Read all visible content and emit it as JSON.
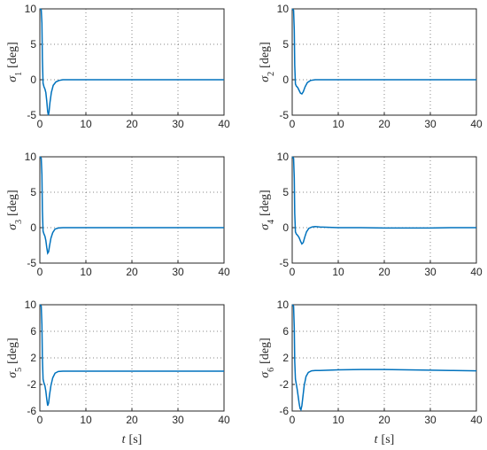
{
  "colors": {
    "line": "#0072BD",
    "axis": "#262626"
  },
  "x_axis_label": {
    "var": "t",
    "unit": "[s]"
  },
  "chart_data": [
    {
      "type": "line",
      "symbol": "σ",
      "subscript": "1",
      "unit": "[deg]",
      "xlim": [
        0,
        40
      ],
      "ylim": [
        -5,
        10
      ],
      "xticks": [
        "0",
        "10",
        "20",
        "30",
        "40"
      ],
      "yticks": [
        "-5",
        "0",
        "5",
        "10"
      ],
      "ytick_values": [
        -5,
        0,
        5,
        10
      ],
      "grid": true,
      "x": [
        0,
        0.3,
        0.45,
        0.55,
        0.7,
        0.9,
        1.1,
        1.3,
        1.5,
        1.7,
        1.85,
        2.0,
        2.2,
        2.5,
        2.9,
        3.5,
        4.2,
        5,
        6,
        8,
        10,
        15,
        20,
        25,
        30,
        35,
        40
      ],
      "y": [
        10,
        9.9,
        8.0,
        3.0,
        -0.5,
        -1.0,
        -1.3,
        -1.8,
        -3.0,
        -4.5,
        -5.0,
        -4.5,
        -3.2,
        -1.8,
        -0.8,
        -0.3,
        -0.1,
        0,
        0,
        0,
        0,
        0,
        0,
        0,
        0,
        0,
        0
      ]
    },
    {
      "type": "line",
      "symbol": "σ",
      "subscript": "2",
      "unit": "[deg]",
      "xlim": [
        0,
        40
      ],
      "ylim": [
        -5,
        10
      ],
      "xticks": [
        "0",
        "10",
        "20",
        "30",
        "40"
      ],
      "yticks": [
        "-5",
        "0",
        "5",
        "10"
      ],
      "ytick_values": [
        -5,
        0,
        5,
        10
      ],
      "grid": true,
      "x": [
        0,
        0.3,
        0.45,
        0.55,
        0.7,
        0.9,
        1.2,
        1.5,
        1.8,
        2.1,
        2.4,
        2.8,
        3.3,
        4,
        5,
        6,
        8,
        10,
        15,
        20,
        25,
        30,
        35,
        40
      ],
      "y": [
        10,
        9.8,
        7.0,
        2.0,
        -0.6,
        -0.9,
        -1.1,
        -1.5,
        -1.9,
        -2.0,
        -1.7,
        -1.0,
        -0.4,
        -0.1,
        0,
        0,
        0,
        0,
        0,
        0,
        0,
        0,
        0,
        0
      ]
    },
    {
      "type": "line",
      "symbol": "σ",
      "subscript": "3",
      "unit": "[deg]",
      "xlim": [
        0,
        40
      ],
      "ylim": [
        -5,
        10
      ],
      "xticks": [
        "0",
        "10",
        "20",
        "30",
        "40"
      ],
      "yticks": [
        "-5",
        "0",
        "5",
        "10"
      ],
      "ytick_values": [
        -5,
        0,
        5,
        10
      ],
      "grid": true,
      "x": [
        0,
        0.3,
        0.45,
        0.55,
        0.7,
        0.9,
        1.1,
        1.3,
        1.5,
        1.7,
        1.9,
        2.1,
        2.4,
        2.8,
        3.3,
        4,
        5,
        6,
        8,
        10,
        15,
        20,
        25,
        30,
        35,
        40
      ],
      "y": [
        10,
        9.8,
        7.5,
        2.5,
        -0.5,
        -0.9,
        -1.2,
        -1.8,
        -2.8,
        -3.6,
        -3.4,
        -2.6,
        -1.5,
        -0.7,
        -0.2,
        -0.05,
        0,
        0,
        0,
        0,
        0,
        0,
        0,
        0,
        0,
        0
      ]
    },
    {
      "type": "line",
      "symbol": "σ",
      "subscript": "4",
      "unit": "[deg]",
      "xlim": [
        0,
        40
      ],
      "ylim": [
        -5,
        10
      ],
      "xticks": [
        "0",
        "10",
        "20",
        "30",
        "40"
      ],
      "yticks": [
        "-5",
        "0",
        "5",
        "10"
      ],
      "ytick_values": [
        -5,
        0,
        5,
        10
      ],
      "grid": true,
      "x": [
        0,
        0.3,
        0.45,
        0.55,
        0.7,
        0.9,
        1.2,
        1.5,
        1.8,
        2.1,
        2.4,
        2.7,
        3.1,
        3.6,
        4.3,
        5,
        6,
        8,
        10,
        15,
        20,
        25,
        30,
        35,
        40
      ],
      "y": [
        10,
        9.8,
        7.0,
        2.0,
        -0.6,
        -0.9,
        -1.1,
        -1.4,
        -1.9,
        -2.3,
        -2.1,
        -1.4,
        -0.6,
        -0.1,
        0.1,
        0.15,
        0.1,
        0.05,
        0,
        0,
        -0.05,
        -0.05,
        -0.05,
        0,
        0
      ]
    },
    {
      "type": "line",
      "symbol": "σ",
      "subscript": "5",
      "unit": "[deg]",
      "xlim": [
        0,
        40
      ],
      "ylim": [
        -6,
        10
      ],
      "xticks": [
        "0",
        "10",
        "20",
        "30",
        "40"
      ],
      "yticks": [
        "-6",
        "-2",
        "2",
        "6",
        "10"
      ],
      "ytick_values": [
        -6,
        -2,
        2,
        6,
        10
      ],
      "grid": true,
      "x": [
        0,
        0.3,
        0.45,
        0.55,
        0.7,
        0.9,
        1.1,
        1.3,
        1.5,
        1.7,
        1.9,
        2.1,
        2.4,
        2.8,
        3.3,
        4,
        5,
        6,
        8,
        10,
        15,
        20,
        25,
        30,
        35,
        40
      ],
      "y": [
        10,
        9.8,
        7.0,
        2.0,
        -1.2,
        -1.8,
        -2.2,
        -3.0,
        -4.2,
        -5.2,
        -4.8,
        -3.6,
        -2.2,
        -1.0,
        -0.3,
        -0.05,
        0,
        0,
        0,
        0,
        0,
        0,
        0,
        0,
        0,
        0
      ]
    },
    {
      "type": "line",
      "symbol": "σ",
      "subscript": "6",
      "unit": "[deg]",
      "xlim": [
        0,
        40
      ],
      "ylim": [
        -6,
        10
      ],
      "xticks": [
        "0",
        "10",
        "20",
        "30",
        "40"
      ],
      "yticks": [
        "-6",
        "-2",
        "2",
        "6",
        "10"
      ],
      "ytick_values": [
        -6,
        -2,
        2,
        6,
        10
      ],
      "grid": true,
      "x": [
        0,
        0.3,
        0.45,
        0.55,
        0.7,
        0.9,
        1.1,
        1.3,
        1.5,
        1.7,
        1.9,
        2.1,
        2.3,
        2.6,
        3.0,
        3.5,
        4.2,
        5,
        6,
        8,
        10,
        15,
        20,
        25,
        30,
        35,
        40
      ],
      "y": [
        10,
        9.8,
        6.5,
        1.5,
        -1.2,
        -2.0,
        -2.8,
        -3.8,
        -4.8,
        -5.6,
        -5.8,
        -5.2,
        -4.0,
        -2.2,
        -0.8,
        -0.2,
        0.05,
        0.1,
        0.1,
        0.15,
        0.2,
        0.25,
        0.25,
        0.2,
        0.15,
        0.1,
        0.05
      ]
    }
  ]
}
